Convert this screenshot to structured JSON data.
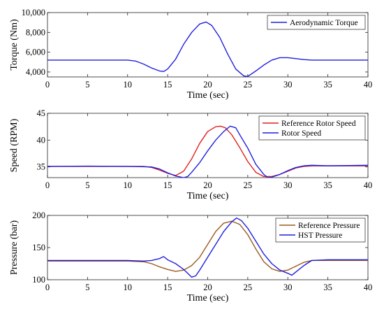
{
  "chart_data": [
    {
      "type": "line",
      "xlabel": "Time (sec)",
      "ylabel": "Torque (Nm)",
      "xlim": [
        0,
        40
      ],
      "ylim": [
        3500,
        10000
      ],
      "xticks": [
        "0",
        "5",
        "10",
        "15",
        "20",
        "25",
        "30",
        "35",
        "40"
      ],
      "xtick_values": [
        0,
        5,
        10,
        15,
        20,
        25,
        30,
        35,
        40
      ],
      "yticks": [
        "4,000",
        "6,000",
        "8,000",
        "10,000"
      ],
      "ytick_values": [
        4000,
        6000,
        8000,
        10000
      ],
      "grid": false,
      "legend_position": "top-right",
      "series": [
        {
          "name": "Aerodynamic Torque",
          "color": "#1f1fe0",
          "x": [
            0,
            5,
            10,
            11,
            12,
            13,
            14,
            14.5,
            15,
            16,
            17,
            18,
            19,
            19.8,
            20.5,
            21.5,
            22.5,
            23.5,
            24.5,
            25,
            26,
            27,
            28,
            29,
            30,
            31,
            32,
            33,
            34,
            35,
            40
          ],
          "y": [
            5200,
            5200,
            5200,
            5100,
            4800,
            4400,
            4100,
            4050,
            4300,
            5300,
            6800,
            8000,
            8850,
            9050,
            8700,
            7500,
            5800,
            4300,
            3600,
            3550,
            4100,
            4700,
            5200,
            5450,
            5450,
            5350,
            5250,
            5200,
            5200,
            5200,
            5200
          ]
        }
      ]
    },
    {
      "type": "line",
      "xlabel": "Time (sec)",
      "ylabel": "Speed (RPM)",
      "xlim": [
        0,
        40
      ],
      "ylim": [
        33,
        45
      ],
      "xticks": [
        "0",
        "5",
        "10",
        "15",
        "20",
        "25",
        "30",
        "35",
        "40"
      ],
      "xtick_values": [
        0,
        5,
        10,
        15,
        20,
        25,
        30,
        35,
        40
      ],
      "yticks": [
        "35",
        "40",
        "45"
      ],
      "ytick_values": [
        35,
        40,
        45
      ],
      "grid": false,
      "legend_position": "top-right",
      "series": [
        {
          "name": "Reference Rotor Speed",
          "color": "#e02020",
          "x": [
            0,
            12,
            13,
            14,
            15,
            16,
            17,
            18,
            19,
            20,
            21,
            21.6,
            22.2,
            23,
            24,
            25,
            26,
            27,
            28,
            29,
            30,
            31,
            32,
            33,
            40
          ],
          "y": [
            35.1,
            35.1,
            34.9,
            34.4,
            33.8,
            33.4,
            34.2,
            36.5,
            39.4,
            41.6,
            42.5,
            42.6,
            42.3,
            41.0,
            38.6,
            36.0,
            34.0,
            33.2,
            33.2,
            33.6,
            34.2,
            34.8,
            35.1,
            35.2,
            35.2
          ]
        },
        {
          "name": "Rotor Speed",
          "color": "#1f1fe0",
          "x": [
            0,
            5,
            10,
            13,
            14,
            15,
            16,
            17,
            17.5,
            18,
            19,
            20,
            21,
            22,
            22.8,
            23.5,
            24,
            25,
            26,
            27,
            27.5,
            28,
            29,
            30,
            31,
            32,
            33,
            35,
            40
          ],
          "y": [
            35.1,
            35.15,
            35.1,
            35.0,
            34.6,
            33.9,
            33.3,
            33.0,
            33.2,
            34.0,
            35.8,
            38.0,
            40.0,
            41.6,
            42.6,
            42.3,
            41.0,
            38.5,
            35.5,
            33.6,
            33.0,
            33.1,
            33.6,
            34.3,
            34.9,
            35.2,
            35.3,
            35.2,
            35.3
          ]
        }
      ]
    },
    {
      "type": "line",
      "xlabel": "Time (sec)",
      "ylabel": "Pressure (bar)",
      "xlim": [
        0,
        40
      ],
      "ylim": [
        100,
        200
      ],
      "xticks": [
        "0",
        "5",
        "10",
        "15",
        "20",
        "25",
        "30",
        "35",
        "40"
      ],
      "xtick_values": [
        0,
        5,
        10,
        15,
        20,
        25,
        30,
        35,
        40
      ],
      "yticks": [
        "100",
        "150",
        "200"
      ],
      "ytick_values": [
        100,
        150,
        200
      ],
      "grid": false,
      "legend_position": "top-right",
      "series": [
        {
          "name": "Reference Pressure",
          "color": "#9a5a1f",
          "x": [
            0,
            5,
            10,
            12,
            13,
            14,
            15,
            16,
            17,
            18,
            19,
            20,
            21,
            22,
            23,
            24,
            25,
            26,
            27,
            28,
            29,
            30,
            31,
            32,
            33,
            35,
            40
          ],
          "y": [
            129,
            129,
            129,
            128,
            125,
            120,
            116,
            113,
            115,
            122,
            135,
            155,
            175,
            188,
            191,
            186,
            170,
            148,
            128,
            117,
            113,
            115,
            121,
            127,
            130,
            130,
            130
          ]
        },
        {
          "name": "HST Pressure",
          "color": "#1f1fe0",
          "x": [
            0,
            5,
            10,
            12,
            13,
            14,
            14.5,
            15,
            16,
            17,
            17.5,
            18,
            18.5,
            19,
            20,
            21,
            22,
            23,
            23.6,
            24.2,
            25,
            26,
            27,
            28,
            29,
            30,
            30.5,
            31,
            32,
            33,
            35,
            40
          ],
          "y": [
            130,
            130,
            130,
            129,
            130,
            133,
            136,
            131,
            125,
            116,
            110,
            104,
            106,
            115,
            135,
            155,
            175,
            190,
            196,
            192,
            180,
            160,
            140,
            125,
            115,
            110,
            107,
            112,
            122,
            130,
            131,
            131
          ]
        }
      ]
    }
  ]
}
